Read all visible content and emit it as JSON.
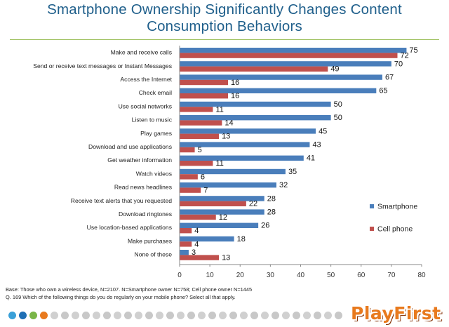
{
  "title": {
    "line1": "Smartphone Ownership Significantly Changes Content",
    "line2": "Consumption Behaviors"
  },
  "colors": {
    "smartphone": "#4a7ebb",
    "cellphone": "#c0504d",
    "title": "#1f5f8b",
    "dots": [
      "#c8c8c8",
      "#3aa0d8",
      "#1f6fb4",
      "#7ab648",
      "#e87a1e",
      "#d0d0d0"
    ]
  },
  "chart_data": {
    "type": "bar",
    "orientation": "horizontal",
    "categories": [
      "Make and receive calls",
      "Send or receive text messages or Instant Messages",
      "Access the Internet",
      "Check email",
      "Use social networks",
      "Listen to music",
      "Play games",
      "Download and use applications",
      "Get weather information",
      "Watch videos",
      "Read news headlines",
      "Receive text alerts that you requested",
      "Download ringtones",
      "Use location-based applications",
      "Make purchases",
      "None of these"
    ],
    "series": [
      {
        "name": "Smartphone",
        "values": [
          75,
          70,
          67,
          65,
          50,
          50,
          45,
          43,
          41,
          35,
          32,
          28,
          28,
          26,
          18,
          3
        ]
      },
      {
        "name": "Cell phone",
        "values": [
          72,
          49,
          16,
          16,
          11,
          14,
          13,
          5,
          11,
          6,
          7,
          22,
          12,
          4,
          4,
          13
        ]
      }
    ],
    "xlim": [
      0,
      80
    ],
    "xticks": [
      0,
      10,
      20,
      30,
      40,
      50,
      60,
      70,
      80
    ],
    "grid": false,
    "legend_position": "right"
  },
  "footnote": {
    "line1": "Base: Those who own a wireless device, N=2107. N=Smartphone owner N=758; Cell phone owner N=1445",
    "line2": "Q. 169 Which of the following things do you do regularly on your mobile phone? Select all that apply."
  },
  "logo": {
    "text": "PlayFirst"
  }
}
